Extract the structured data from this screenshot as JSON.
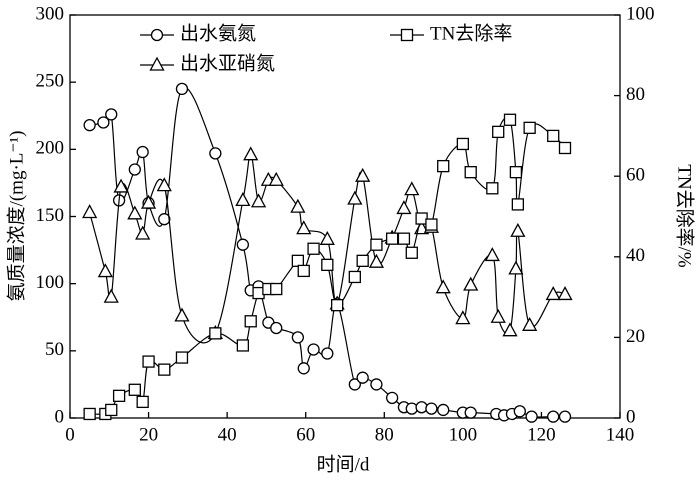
{
  "chart_data": {
    "type": "line",
    "x_label": "时间/d",
    "y_label": "氨质量浓度/(mg·L⁻¹)",
    "y2_label": "TN去除率/%",
    "xlim": [
      0,
      140
    ],
    "xticks": [
      0,
      20,
      40,
      60,
      80,
      100,
      120,
      140
    ],
    "ylim": [
      0,
      300
    ],
    "yticks": [
      0,
      50,
      100,
      150,
      200,
      250,
      300
    ],
    "y2lim": [
      0,
      100
    ],
    "y2ticks": [
      0,
      20,
      40,
      60,
      80,
      100
    ],
    "series": [
      {
        "name": "出水氨氮",
        "marker": "circle",
        "color": "#000000",
        "x": [
          5,
          8.5,
          10.5,
          12.5,
          16.5,
          18.5,
          20,
          24,
          28.5,
          37,
          44,
          46,
          48,
          50.5,
          52.5,
          58,
          59.5,
          62,
          65.5,
          68,
          72.5,
          74.5,
          78,
          82,
          85,
          87,
          89.5,
          92,
          95,
          100,
          102,
          108.5,
          110.5,
          112.5,
          114.5,
          117.5,
          123,
          126
        ],
        "values": [
          218,
          220,
          226,
          162,
          185,
          198,
          160,
          148,
          245,
          197,
          129,
          95,
          98,
          71,
          67,
          60,
          37,
          51,
          48,
          85,
          25,
          30,
          25,
          15,
          8,
          7,
          8,
          7,
          6,
          4,
          4,
          3,
          2,
          3,
          5,
          1,
          1,
          1
        ]
      },
      {
        "name": "出水亚硝氮",
        "marker": "triangle",
        "color": "#000000",
        "x": [
          5,
          9,
          10.5,
          13,
          16.5,
          18.5,
          20,
          24,
          28.5,
          37,
          44,
          46,
          48,
          50.5,
          52.5,
          58,
          59.5,
          65.5,
          68,
          72.5,
          74.5,
          78,
          82,
          85,
          87,
          89.5,
          92,
          95,
          100,
          102,
          107.5,
          109,
          112,
          113.5,
          114,
          117,
          123,
          126
        ],
        "values": [
          153,
          109,
          90,
          172,
          152,
          137,
          160,
          173,
          76,
          63,
          162,
          196,
          161,
          177,
          177,
          157,
          141,
          133,
          85,
          163,
          180,
          116,
          134,
          156,
          170,
          141,
          142,
          97,
          74,
          99,
          121,
          75,
          65,
          111,
          139,
          69,
          92,
          92
        ]
      },
      {
        "name": "TN去除率",
        "marker": "square",
        "color": "#000000",
        "axis": "y2",
        "x": [
          5,
          9,
          10.5,
          12.5,
          16.5,
          18.5,
          20,
          24,
          28.5,
          37,
          44,
          46,
          48,
          50.5,
          52.5,
          58,
          59.5,
          62,
          65.5,
          68,
          72.5,
          74.5,
          78,
          82,
          85,
          87,
          89.5,
          92,
          95,
          100,
          102,
          107.5,
          109,
          112,
          113.5,
          114,
          117,
          123,
          126
        ],
        "values": [
          1,
          1,
          2,
          5.5,
          7,
          4,
          14,
          12,
          15,
          21,
          18,
          24,
          31,
          32,
          32,
          39,
          36.5,
          42,
          38,
          28,
          35,
          39,
          43,
          44.5,
          44.5,
          41,
          49.5,
          48,
          62.5,
          68,
          61,
          57,
          71,
          74,
          61,
          53,
          72,
          70,
          67
        ]
      }
    ]
  }
}
